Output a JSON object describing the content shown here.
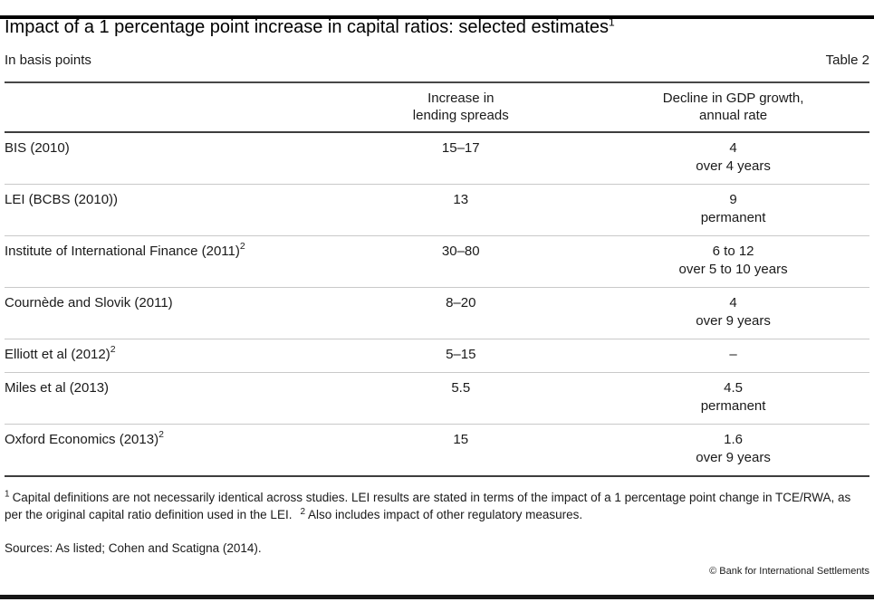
{
  "header": {
    "title": "Impact of a 1 percentage point increase in capital ratios: selected estimates",
    "title_note": "1",
    "units": "In basis points",
    "table_number": "Table 2"
  },
  "table": {
    "columns": {
      "spread": "Increase in\nlending spreads",
      "gdp": "Decline in GDP growth,\nannual rate"
    },
    "rows": [
      {
        "study": "BIS (2010)",
        "spread": "15–17",
        "gdp_value": "4",
        "gdp_duration": "over 4 years"
      },
      {
        "study": "LEI (BCBS (2010))",
        "spread": "13",
        "gdp_value": "9",
        "gdp_duration": "permanent"
      },
      {
        "study": "Institute of International Finance (2011)",
        "study_note": "2",
        "spread": "30–80",
        "gdp_value": "6 to 12",
        "gdp_duration": "over 5 to 10 years"
      },
      {
        "study": "Cournède and Slovik (2011)",
        "spread": "8–20",
        "gdp_value": "4",
        "gdp_duration": "over 9 years"
      },
      {
        "study": "Elliott et al (2012)",
        "study_note": "2",
        "spread": "5–15",
        "gdp_value": "–"
      },
      {
        "study": "Miles et al (2013)",
        "spread": "5.5",
        "gdp_value": "4.5",
        "gdp_duration": "permanent"
      },
      {
        "study": "Oxford Economics (2013)",
        "study_note": "2",
        "spread": "15",
        "gdp_value": "1.6",
        "gdp_duration": "over 9 years"
      }
    ]
  },
  "footnotes": {
    "note1_marker": "1",
    "note1_text": "Capital definitions are not necessarily identical across studies. LEI results are stated in terms of the impact of a 1 percentage point change in TCE/RWA, as per the original capital ratio definition used in the LEI.",
    "note2_marker": "2",
    "note2_text": "Also includes impact of other regulatory measures."
  },
  "sources": "Sources: As listed; Cohen and Scatigna (2014).",
  "copyright": "© Bank for International Settlements"
}
